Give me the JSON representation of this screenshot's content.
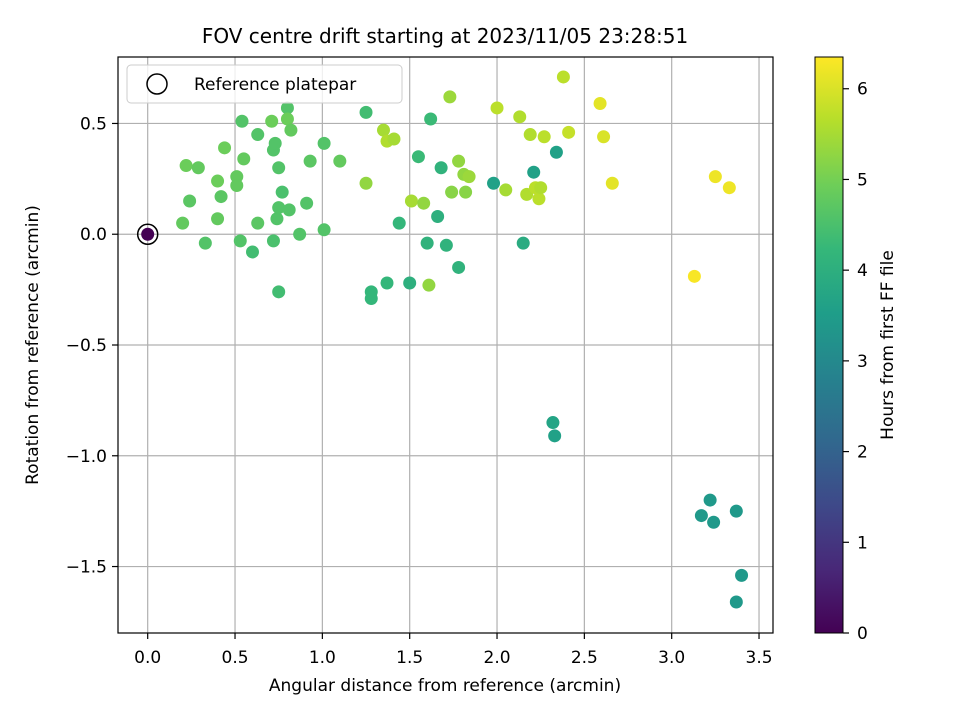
{
  "chart_data": {
    "type": "scatter",
    "title": "FOV centre drift starting at 2023/11/05 23:28:51",
    "xlabel": "Angular distance from reference (arcmin)",
    "ylabel": "Rotation from reference (arcmin)",
    "xlim": [
      -0.17,
      3.58
    ],
    "ylim": [
      -1.8,
      0.8
    ],
    "xticks": [
      0.0,
      0.5,
      1.0,
      1.5,
      2.0,
      2.5,
      3.0,
      3.5
    ],
    "xtick_labels": [
      "0.0",
      "0.5",
      "1.0",
      "1.5",
      "2.0",
      "2.5",
      "3.0",
      "3.5"
    ],
    "yticks": [
      0.5,
      0.0,
      -0.5,
      -1.0,
      -1.5
    ],
    "ytick_labels": [
      "0.5",
      "0.0",
      "−0.5",
      "−1.0",
      "−1.5"
    ],
    "grid": true,
    "legend": {
      "position": "top-left",
      "entries": [
        "Reference platepar"
      ]
    },
    "reference_point": {
      "x": 0.0,
      "y": 0.0,
      "hours": 0
    },
    "colorbar": {
      "label": "Hours from first FF file",
      "range": [
        0,
        6.35
      ],
      "ticks": [
        0,
        1,
        2,
        3,
        4,
        5,
        6
      ],
      "tick_labels": [
        "0",
        "1",
        "2",
        "3",
        "4",
        "5",
        "6"
      ],
      "colormap": [
        "#440154",
        "#482878",
        "#3e4989",
        "#31688e",
        "#26828e",
        "#1f9e89",
        "#35b779",
        "#6ece58",
        "#b5de2b",
        "#fde725"
      ]
    },
    "points": [
      {
        "x": 0.0,
        "y": 0.0,
        "h": 0.0
      },
      {
        "x": 0.2,
        "y": 0.05,
        "h": 4.8
      },
      {
        "x": 0.22,
        "y": 0.31,
        "h": 4.9
      },
      {
        "x": 0.24,
        "y": 0.15,
        "h": 4.7
      },
      {
        "x": 0.29,
        "y": 0.3,
        "h": 4.8
      },
      {
        "x": 0.33,
        "y": -0.04,
        "h": 4.6
      },
      {
        "x": 0.4,
        "y": 0.24,
        "h": 4.9
      },
      {
        "x": 0.4,
        "y": 0.07,
        "h": 4.8
      },
      {
        "x": 0.42,
        "y": 0.17,
        "h": 4.7
      },
      {
        "x": 0.44,
        "y": 0.39,
        "h": 4.9
      },
      {
        "x": 0.51,
        "y": 0.26,
        "h": 4.8
      },
      {
        "x": 0.51,
        "y": 0.22,
        "h": 4.8
      },
      {
        "x": 0.53,
        "y": -0.03,
        "h": 4.6
      },
      {
        "x": 0.54,
        "y": 0.51,
        "h": 4.6
      },
      {
        "x": 0.55,
        "y": 0.34,
        "h": 4.8
      },
      {
        "x": 0.6,
        "y": -0.08,
        "h": 4.4
      },
      {
        "x": 0.63,
        "y": 0.45,
        "h": 4.6
      },
      {
        "x": 0.63,
        "y": 0.05,
        "h": 4.7
      },
      {
        "x": 0.71,
        "y": 0.51,
        "h": 4.9
      },
      {
        "x": 0.72,
        "y": 0.38,
        "h": 4.6
      },
      {
        "x": 0.72,
        "y": -0.03,
        "h": 4.5
      },
      {
        "x": 0.73,
        "y": 0.41,
        "h": 4.6
      },
      {
        "x": 0.74,
        "y": 0.07,
        "h": 4.6
      },
      {
        "x": 0.75,
        "y": 0.3,
        "h": 4.6
      },
      {
        "x": 0.75,
        "y": 0.12,
        "h": 4.6
      },
      {
        "x": 0.75,
        "y": -0.26,
        "h": 4.4
      },
      {
        "x": 0.77,
        "y": 0.19,
        "h": 4.5
      },
      {
        "x": 0.8,
        "y": 0.57,
        "h": 4.6
      },
      {
        "x": 0.8,
        "y": 0.52,
        "h": 4.9
      },
      {
        "x": 0.81,
        "y": 0.11,
        "h": 4.6
      },
      {
        "x": 0.82,
        "y": 0.47,
        "h": 4.8
      },
      {
        "x": 0.87,
        "y": 0.0,
        "h": 4.6
      },
      {
        "x": 0.91,
        "y": 0.14,
        "h": 4.6
      },
      {
        "x": 0.93,
        "y": 0.33,
        "h": 4.7
      },
      {
        "x": 1.01,
        "y": 0.41,
        "h": 4.6
      },
      {
        "x": 1.01,
        "y": 0.02,
        "h": 4.6
      },
      {
        "x": 1.1,
        "y": 0.33,
        "h": 4.8
      },
      {
        "x": 1.25,
        "y": 0.55,
        "h": 4.4
      },
      {
        "x": 1.25,
        "y": 0.23,
        "h": 5.3
      },
      {
        "x": 1.28,
        "y": -0.26,
        "h": 4.2
      },
      {
        "x": 1.28,
        "y": -0.29,
        "h": 4.2
      },
      {
        "x": 1.35,
        "y": 0.47,
        "h": 5.5
      },
      {
        "x": 1.37,
        "y": 0.42,
        "h": 5.6
      },
      {
        "x": 1.37,
        "y": -0.22,
        "h": 4.2
      },
      {
        "x": 1.41,
        "y": 0.43,
        "h": 5.5
      },
      {
        "x": 1.44,
        "y": 0.05,
        "h": 4.2
      },
      {
        "x": 1.5,
        "y": -0.22,
        "h": 4.0
      },
      {
        "x": 1.51,
        "y": 0.15,
        "h": 5.5
      },
      {
        "x": 1.55,
        "y": 0.35,
        "h": 4.3
      },
      {
        "x": 1.58,
        "y": 0.14,
        "h": 5.3
      },
      {
        "x": 1.6,
        "y": -0.04,
        "h": 4.1
      },
      {
        "x": 1.61,
        "y": -0.23,
        "h": 5.3
      },
      {
        "x": 1.62,
        "y": 0.52,
        "h": 4.3
      },
      {
        "x": 1.66,
        "y": 0.08,
        "h": 4.0
      },
      {
        "x": 1.68,
        "y": 0.3,
        "h": 4.1
      },
      {
        "x": 1.71,
        "y": -0.05,
        "h": 4.1
      },
      {
        "x": 1.73,
        "y": 0.62,
        "h": 5.4
      },
      {
        "x": 1.74,
        "y": 0.19,
        "h": 5.2
      },
      {
        "x": 1.78,
        "y": 0.33,
        "h": 5.3
      },
      {
        "x": 1.78,
        "y": -0.15,
        "h": 4.1
      },
      {
        "x": 1.81,
        "y": 0.27,
        "h": 5.3
      },
      {
        "x": 1.82,
        "y": 0.19,
        "h": 5.2
      },
      {
        "x": 1.84,
        "y": 0.26,
        "h": 5.4
      },
      {
        "x": 1.98,
        "y": 0.23,
        "h": 3.6
      },
      {
        "x": 2.0,
        "y": 0.57,
        "h": 5.7
      },
      {
        "x": 2.05,
        "y": 0.2,
        "h": 5.5
      },
      {
        "x": 2.13,
        "y": 0.53,
        "h": 5.6
      },
      {
        "x": 2.15,
        "y": -0.04,
        "h": 3.9
      },
      {
        "x": 2.17,
        "y": 0.18,
        "h": 5.6
      },
      {
        "x": 2.19,
        "y": 0.45,
        "h": 5.6
      },
      {
        "x": 2.21,
        "y": 0.28,
        "h": 3.6
      },
      {
        "x": 2.22,
        "y": 0.21,
        "h": 5.7
      },
      {
        "x": 2.24,
        "y": 0.16,
        "h": 5.7
      },
      {
        "x": 2.25,
        "y": 0.21,
        "h": 5.6
      },
      {
        "x": 2.27,
        "y": 0.44,
        "h": 5.7
      },
      {
        "x": 2.32,
        "y": -0.85,
        "h": 3.7
      },
      {
        "x": 2.33,
        "y": -0.91,
        "h": 3.6
      },
      {
        "x": 2.34,
        "y": 0.37,
        "h": 3.6
      },
      {
        "x": 2.38,
        "y": 0.71,
        "h": 5.7
      },
      {
        "x": 2.41,
        "y": 0.46,
        "h": 5.8
      },
      {
        "x": 2.59,
        "y": 0.59,
        "h": 6.1
      },
      {
        "x": 2.61,
        "y": 0.44,
        "h": 6.0
      },
      {
        "x": 2.66,
        "y": 0.23,
        "h": 6.1
      },
      {
        "x": 3.13,
        "y": -0.19,
        "h": 6.3
      },
      {
        "x": 3.17,
        "y": -1.27,
        "h": 3.4
      },
      {
        "x": 3.22,
        "y": -1.2,
        "h": 3.4
      },
      {
        "x": 3.24,
        "y": -1.3,
        "h": 3.4
      },
      {
        "x": 3.25,
        "y": 0.26,
        "h": 6.2
      },
      {
        "x": 3.33,
        "y": 0.21,
        "h": 6.2
      },
      {
        "x": 3.37,
        "y": -1.25,
        "h": 3.4
      },
      {
        "x": 3.37,
        "y": -1.66,
        "h": 3.4
      },
      {
        "x": 3.4,
        "y": -1.54,
        "h": 3.4
      }
    ]
  }
}
